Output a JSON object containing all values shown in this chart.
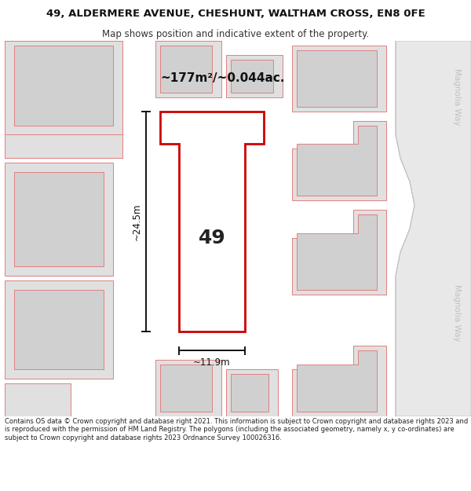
{
  "title_line1": "49, ALDERMERE AVENUE, CHESHUNT, WALTHAM CROSS, EN8 0FE",
  "title_line2": "Map shows position and indicative extent of the property.",
  "area_label": "~177m²/~0.044ac.",
  "number_label": "49",
  "dim_height": "~24.5m",
  "dim_width": "~11.9m",
  "street_label_top": "Magnolia Way",
  "street_label_bottom": "Magnolia Way",
  "footer_text": "Contains OS data © Crown copyright and database right 2021. This information is subject to Crown copyright and database rights 2023 and is reproduced with the permission of HM Land Registry. The polygons (including the associated geometry, namely x, y co-ordinates) are subject to Crown copyright and database rights 2023 Ordnance Survey 100026316.",
  "bg_color": "#ffffff",
  "map_bg": "#f0f0f0",
  "plot_fill": "#ffffff",
  "plot_stroke": "#cc0000",
  "neighbor_fill": "#e0e0e0",
  "neighbor_stroke": "#e08080",
  "neighbor_inner_fill": "#d0d0d0",
  "dim_line_color": "#111111",
  "street_text_color": "#c0c0c0",
  "road_fill": "#e8e8e8",
  "road_curve_color": "#c0c0c0"
}
